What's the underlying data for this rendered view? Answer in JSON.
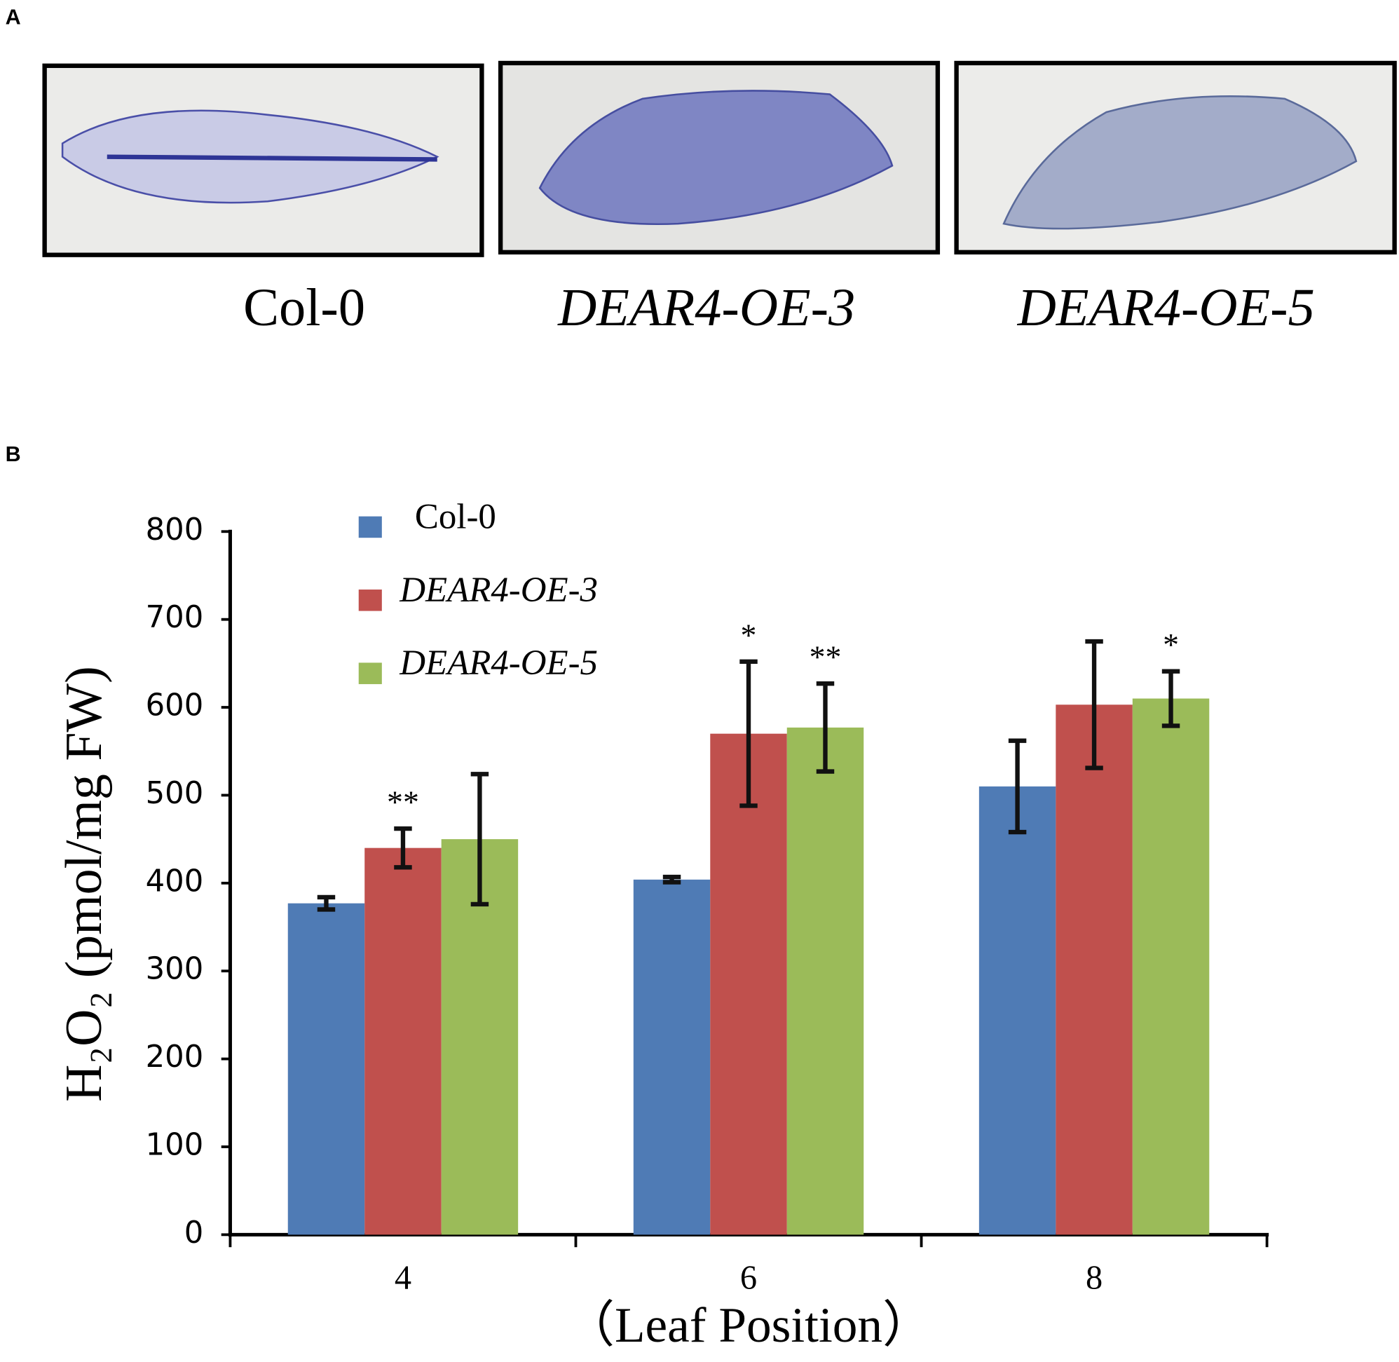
{
  "panel_a": {
    "label": "A",
    "captions": [
      "Col-0",
      "DEAR4-OE-3",
      "DEAR4-OE-5"
    ]
  },
  "chart_data": {
    "type": "bar",
    "panel_label": "B",
    "y_label": "H₂O₂ (pmol/mg FW)",
    "x_label": "（Leaf Position）",
    "categories": [
      "4",
      "6",
      "8"
    ],
    "series": [
      {
        "name": "Col-0",
        "color": "#4f7bb5",
        "values": [
          377,
          404,
          510
        ],
        "errors": [
          7,
          3,
          52
        ],
        "significance": [
          null,
          null,
          null
        ]
      },
      {
        "name": "DEAR4-OE-3",
        "color": "#c0504d",
        "values": [
          440,
          570,
          603
        ],
        "errors": [
          22,
          82,
          72
        ],
        "significance": [
          "**",
          "*",
          null
        ]
      },
      {
        "name": "DEAR4-OE-5",
        "color": "#9bbb59",
        "values": [
          450,
          577,
          610
        ],
        "errors": [
          74,
          50,
          31
        ],
        "significance": [
          null,
          "**",
          "*"
        ]
      }
    ],
    "ylim": [
      0,
      800
    ],
    "yticks": [
      0,
      100,
      200,
      300,
      400,
      500,
      600,
      700,
      800
    ],
    "grid": false
  }
}
